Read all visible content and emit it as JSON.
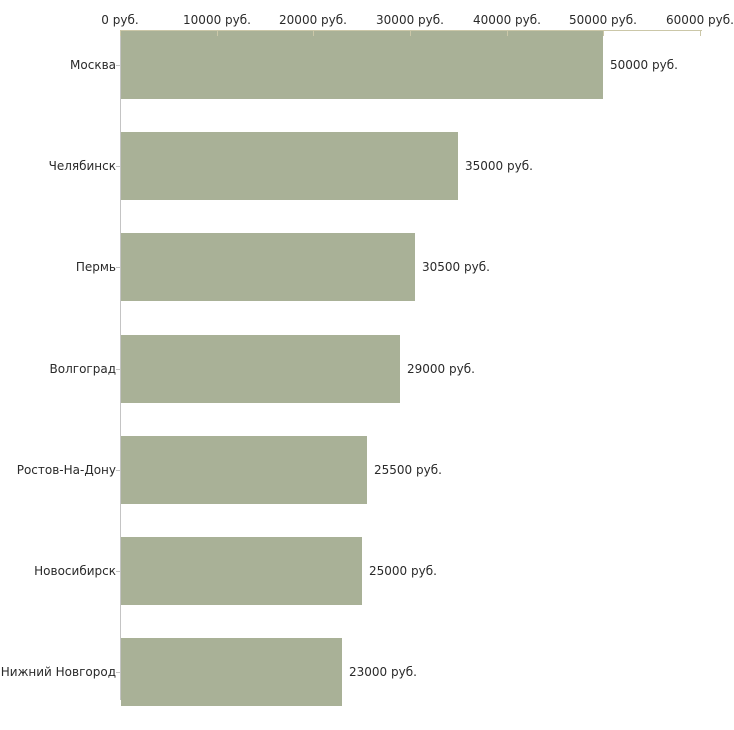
{
  "chart_data": {
    "type": "bar",
    "orientation": "horizontal",
    "title": "",
    "categories": [
      "Москва",
      "Челябинск",
      "Пермь",
      "Волгоград",
      "Ростов-На-Дону",
      "Новосибирск",
      "Нижний Новгород"
    ],
    "values": [
      50000,
      35000,
      30500,
      29000,
      25500,
      25000,
      23000
    ],
    "value_labels": [
      "50000 руб.",
      "35000 руб.",
      "30500 руб.",
      "29000 руб.",
      "25500 руб.",
      "25000 руб.",
      "23000 руб."
    ],
    "x_axis": {
      "position": "top",
      "min": 0,
      "max": 60000,
      "unit": "руб.",
      "tick_values": [
        0,
        10000,
        20000,
        30000,
        40000,
        50000,
        60000
      ],
      "tick_labels": [
        "0 руб.",
        "10000 руб.",
        "20000 руб.",
        "30000 руб.",
        "40000 руб.",
        "50000 руб.",
        "60000 руб."
      ]
    },
    "legend": false,
    "grid": false,
    "colors": {
      "bar": "#a9b197",
      "x_axis_line": "#cbc7a8",
      "y_axis_line": "#c4c4c4",
      "text": "#2a2a2a",
      "background": "#ffffff"
    }
  }
}
